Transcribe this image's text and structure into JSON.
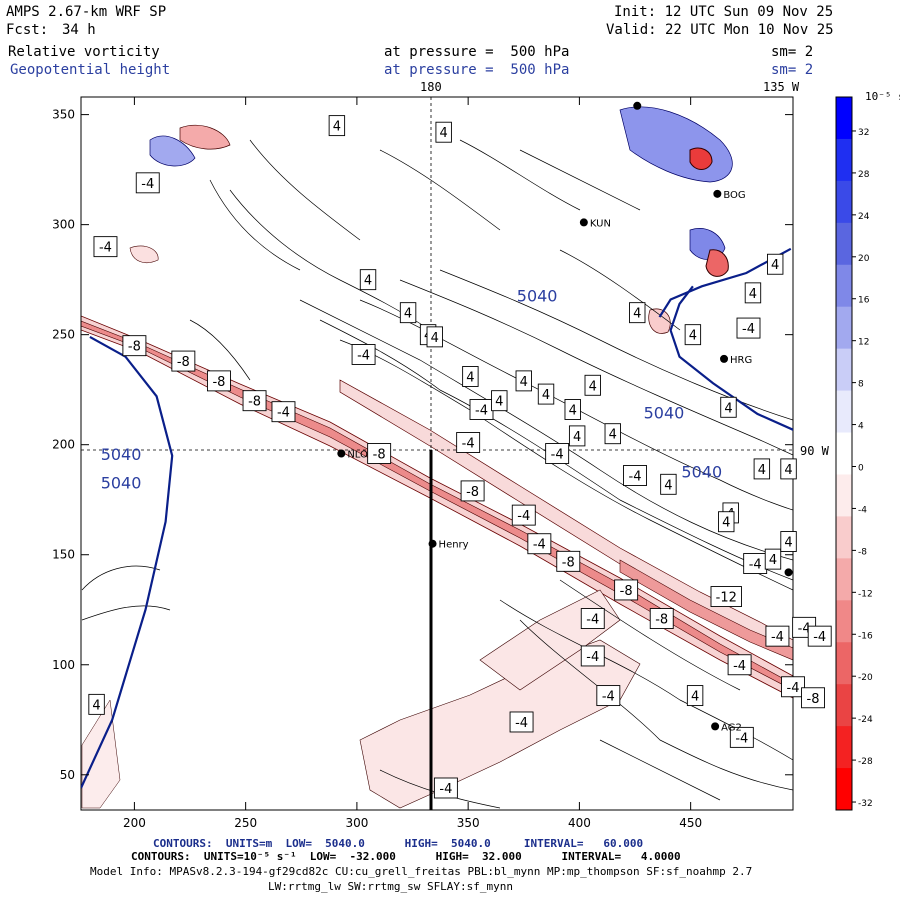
{
  "header": {
    "model": "AMPS 2.67-km WRF SP",
    "fcst_label": "Fcst:",
    "fcst_value": "34 h",
    "init": "Init: 12 UTC Sun 09 Nov 25",
    "valid": "Valid: 22 UTC Mon 10 Nov 25",
    "field1": "Relative vorticity",
    "field2": "Geopotential height",
    "pressure1": "at pressure =  500 hPa",
    "pressure2": "at pressure =  500 hPa",
    "sm1": "sm= 2",
    "sm2": "sm= 2"
  },
  "map_labels": {
    "lon180": "180",
    "lon135": "135 W",
    "lon90": "90 W"
  },
  "stations": [
    {
      "name": "BOG",
      "x": 462,
      "y": 314
    },
    {
      "name": "KUN",
      "x": 402,
      "y": 301
    },
    {
      "name": "HRG",
      "x": 465,
      "y": 239
    },
    {
      "name": "NLO",
      "x": 293,
      "y": 196
    },
    {
      "name": "Henry",
      "x": 334,
      "y": 155
    },
    {
      "name": "AG2",
      "x": 461,
      "y": 72
    },
    {
      "name": "",
      "x": 494,
      "y": 142
    },
    {
      "name": "",
      "x": 426,
      "y": 354
    }
  ],
  "colorbar": {
    "unit": "10⁻⁵ s⁻¹",
    "levels": [
      "32",
      "28",
      "24",
      "20",
      "16",
      "12",
      "8",
      "4",
      "0",
      "-4",
      "-8",
      "-12",
      "-16",
      "-20",
      "-24",
      "-28",
      "-32"
    ],
    "colors": [
      "#0000ff",
      "#1f2ff2",
      "#3a4ae8",
      "#5a66e0",
      "#7f88e8",
      "#a2a9ef",
      "#c9cdf7",
      "#e8eafc",
      "#ffffff",
      "#fdecec",
      "#f9cccc",
      "#f4aaaa",
      "#f08888",
      "#ec6666",
      "#ea4444",
      "#f42222",
      "#ff0000"
    ]
  },
  "footer": {
    "line1": "CONTOURS:  UNITS=m  LOW=  5040.0      HIGH=  5040.0     INTERVAL=   60.000",
    "line2": "CONTOURS:  UNITS=10⁻⁵ s⁻¹  LOW=  -32.000      HIGH=  32.000      INTERVAL=   4.0000",
    "line3": "Model Info: MPASv8.2.3-194-gf29cd82c CU:cu_grell_freitas PBL:bl_mynn MP:mp_thompson SF:sf_noahmp 2.7",
    "line4": "LW:rrtmg_lw SW:rrtmg_sw SFLAY:sf_mynn"
  },
  "chart_data": {
    "type": "contour-map",
    "title": "Relative vorticity / Geopotential height at pressure = 500 hPa",
    "x_ticks": [
      200,
      250,
      300,
      350,
      400,
      450
    ],
    "y_ticks": [
      50,
      100,
      150,
      200,
      250,
      300,
      350
    ],
    "xlim": [
      176,
      496
    ],
    "ylim": [
      34,
      358
    ],
    "height_label": "5040",
    "height_contour_labels": [
      {
        "text": "5040",
        "x": 194,
        "y": 193
      },
      {
        "text": "5040",
        "x": 194,
        "y": 180
      },
      {
        "text": "5040",
        "x": 381,
        "y": 265
      },
      {
        "text": "5040",
        "x": 438,
        "y": 212
      },
      {
        "text": "5040",
        "x": 455,
        "y": 185
      }
    ],
    "height_contours": [
      [
        [
          176,
          44
        ],
        [
          190,
          75
        ],
        [
          205,
          125
        ],
        [
          214,
          165
        ],
        [
          217,
          195
        ],
        [
          210,
          222
        ],
        [
          196,
          240
        ],
        [
          180,
          249
        ]
      ],
      [
        [
          436,
          258
        ],
        [
          441,
          266
        ],
        [
          455,
          272
        ],
        [
          475,
          278
        ],
        [
          495,
          289
        ]
      ],
      [
        [
          451,
          272
        ],
        [
          445,
          264
        ],
        [
          441,
          252
        ],
        [
          445,
          240
        ],
        [
          460,
          228
        ],
        [
          480,
          214
        ],
        [
          500,
          205
        ],
        [
          520,
          195
        ],
        [
          540,
          184
        ],
        [
          556,
          172
        ],
        [
          576,
          163
        ],
        [
          600,
          156
        ],
        [
          620,
          151
        ]
      ]
    ],
    "vorticity_labels": [
      {
        "text": "4",
        "x": 291,
        "y": 345
      },
      {
        "text": "4",
        "x": 339,
        "y": 342
      },
      {
        "text": "-4",
        "x": 206,
        "y": 319
      },
      {
        "text": "-4",
        "x": 187,
        "y": 290
      },
      {
        "text": "4",
        "x": 305,
        "y": 275
      },
      {
        "text": "4",
        "x": 323,
        "y": 260
      },
      {
        "text": "-8",
        "x": 200,
        "y": 245
      },
      {
        "text": "-8",
        "x": 222,
        "y": 238
      },
      {
        "text": "-8",
        "x": 238,
        "y": 229
      },
      {
        "text": "-8",
        "x": 254,
        "y": 220
      },
      {
        "text": "-4",
        "x": 267,
        "y": 215
      },
      {
        "text": "-4",
        "x": 303,
        "y": 241
      },
      {
        "text": "4",
        "x": 332,
        "y": 250
      },
      {
        "text": "4",
        "x": 351,
        "y": 231
      },
      {
        "text": "4",
        "x": 375,
        "y": 229
      },
      {
        "text": "4",
        "x": 385,
        "y": 223
      },
      {
        "text": "-4",
        "x": 356,
        "y": 216
      },
      {
        "text": "4",
        "x": 364,
        "y": 220
      },
      {
        "text": "4",
        "x": 397,
        "y": 216
      },
      {
        "text": "4",
        "x": 406,
        "y": 227
      },
      {
        "text": "4",
        "x": 399,
        "y": 204
      },
      {
        "text": "4",
        "x": 415,
        "y": 205
      },
      {
        "text": "4",
        "x": 467,
        "y": 217
      },
      {
        "text": "-4",
        "x": 350,
        "y": 201
      },
      {
        "text": "-8",
        "x": 310,
        "y": 196
      },
      {
        "text": "-8",
        "x": 352,
        "y": 179
      },
      {
        "text": "-4",
        "x": 390,
        "y": 196
      },
      {
        "text": "-4",
        "x": 425,
        "y": 186
      },
      {
        "text": "4",
        "x": 440,
        "y": 182
      },
      {
        "text": "4",
        "x": 468,
        "y": 169
      },
      {
        "text": "4",
        "x": 482,
        "y": 189
      },
      {
        "text": "4",
        "x": 494,
        "y": 189
      },
      {
        "text": "-4",
        "x": 375,
        "y": 168
      },
      {
        "text": "-4",
        "x": 382,
        "y": 155
      },
      {
        "text": "-8",
        "x": 395,
        "y": 147
      },
      {
        "text": "-4",
        "x": 479,
        "y": 146
      },
      {
        "text": "4",
        "x": 487,
        "y": 148
      },
      {
        "text": "-8",
        "x": 421,
        "y": 134
      },
      {
        "text": "-8",
        "x": 437,
        "y": 121
      },
      {
        "text": "-12",
        "x": 466,
        "y": 131
      },
      {
        "text": "4",
        "x": 466,
        "y": 165
      },
      {
        "text": "4",
        "x": 494,
        "y": 156
      },
      {
        "text": "-4",
        "x": 406,
        "y": 121
      },
      {
        "text": "-4",
        "x": 406,
        "y": 104
      },
      {
        "text": "-4",
        "x": 501,
        "y": 117
      },
      {
        "text": "-4",
        "x": 489,
        "y": 113
      },
      {
        "text": "-4",
        "x": 508,
        "y": 113
      },
      {
        "text": "-4",
        "x": 472,
        "y": 100
      },
      {
        "text": "-4",
        "x": 496,
        "y": 90
      },
      {
        "text": "-8",
        "x": 505,
        "y": 85
      },
      {
        "text": "-4",
        "x": 413,
        "y": 86
      },
      {
        "text": "4",
        "x": 452,
        "y": 86
      },
      {
        "text": "-4",
        "x": 374,
        "y": 74
      },
      {
        "text": "-4",
        "x": 473,
        "y": 67
      },
      {
        "text": "-4",
        "x": 340,
        "y": 44
      },
      {
        "text": "4",
        "x": 183,
        "y": 82
      },
      {
        "text": "4",
        "x": 488,
        "y": 282
      },
      {
        "text": "4",
        "x": 478,
        "y": 269
      },
      {
        "text": "-4",
        "x": 476,
        "y": 253
      },
      {
        "text": "4",
        "x": 451,
        "y": 250
      },
      {
        "text": "4",
        "x": 426,
        "y": 260
      },
      {
        "text": "4",
        "x": 335,
        "y": 249
      }
    ]
  }
}
